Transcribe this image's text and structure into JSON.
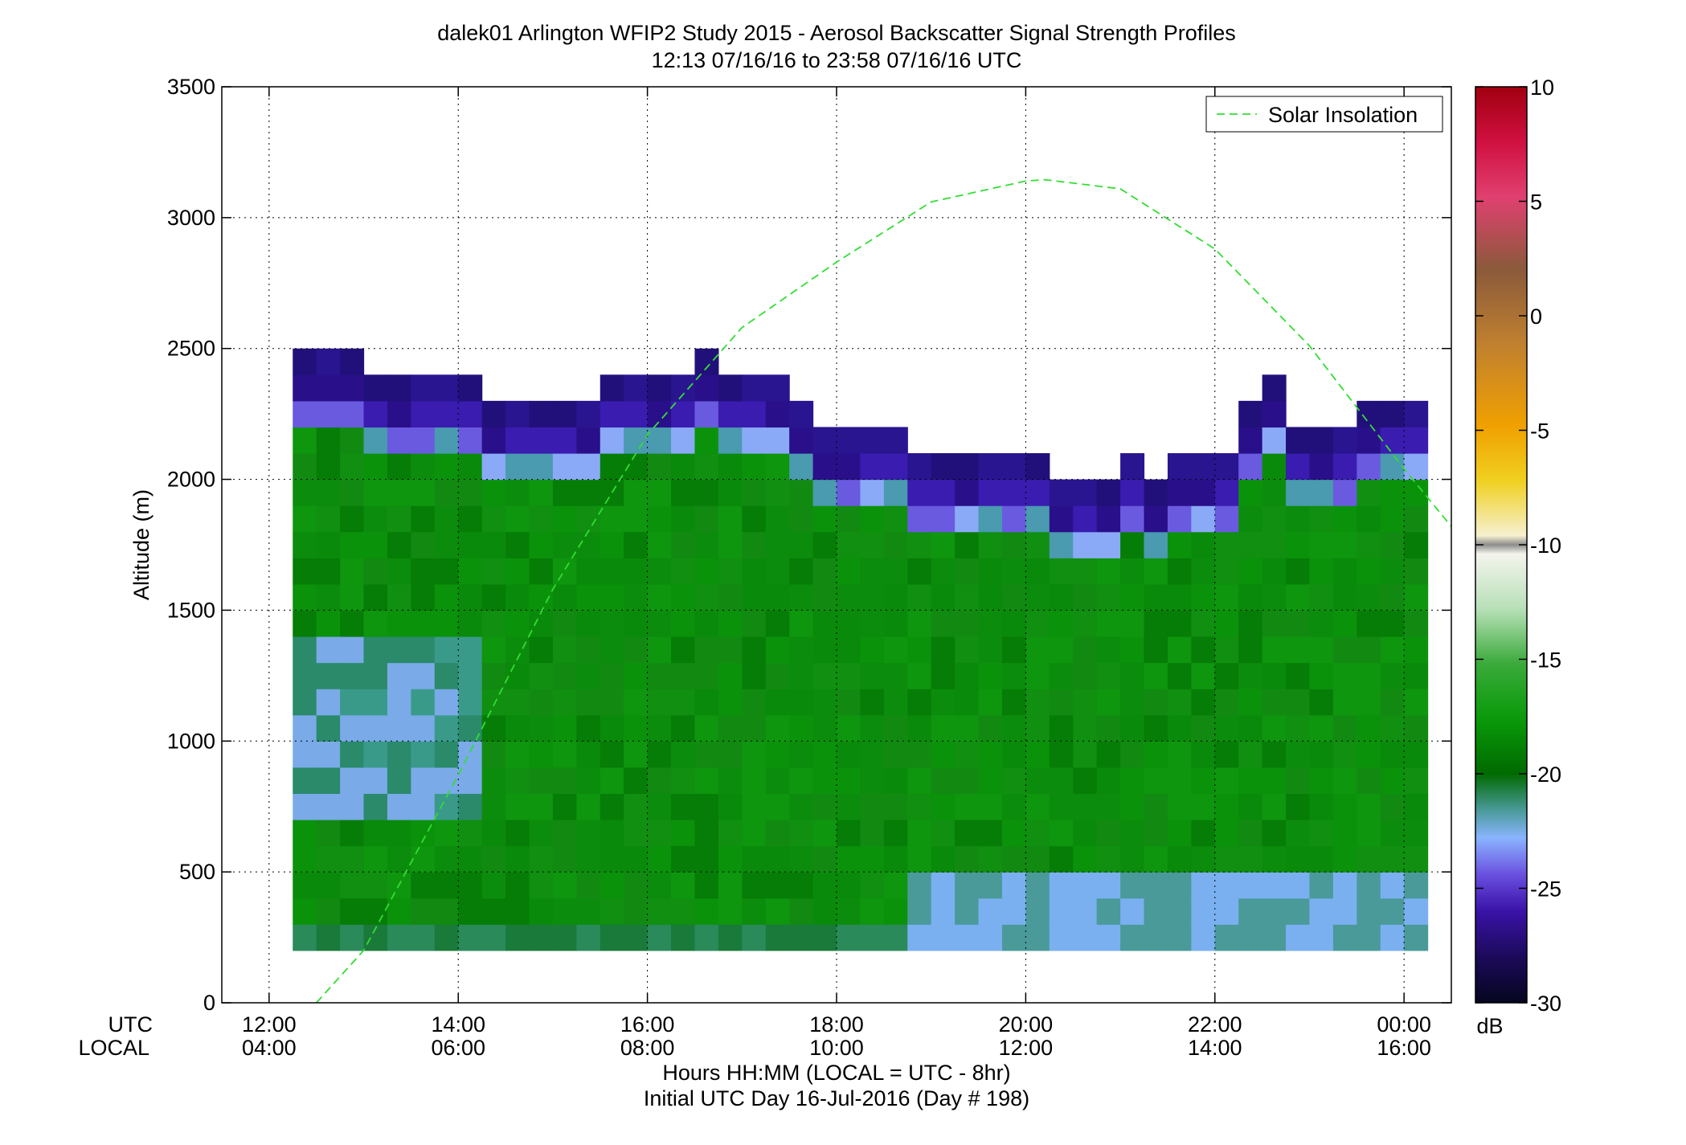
{
  "chart_data": {
    "type": "heatmap",
    "title": "dalek01 Arlington WFIP2 Study 2015 - Aerosol Backscatter Signal Strength Profiles",
    "subtitle": "12:13 07/16/16 to 23:58 07/16/16  UTC",
    "ylabel": "Altitude (m)",
    "xlabel": "Hours HH:MM  (LOCAL = UTC - 8hr)",
    "xlabel2": "Initial UTC Day 16-Jul-2016 (Day # 198)",
    "axis_row_labels": {
      "utc": "UTC",
      "local": "LOCAL"
    },
    "xlim_hours_utc": [
      11.5,
      24.5
    ],
    "ylim": [
      0,
      3500
    ],
    "grid": true,
    "x_ticks": [
      {
        "hour": 12,
        "utc": "12:00",
        "local": "04:00"
      },
      {
        "hour": 14,
        "utc": "14:00",
        "local": "06:00"
      },
      {
        "hour": 16,
        "utc": "16:00",
        "local": "08:00"
      },
      {
        "hour": 18,
        "utc": "18:00",
        "local": "10:00"
      },
      {
        "hour": 20,
        "utc": "20:00",
        "local": "12:00"
      },
      {
        "hour": 22,
        "utc": "22:00",
        "local": "14:00"
      },
      {
        "hour": 24,
        "utc": "00:00",
        "local": "16:00"
      }
    ],
    "y_ticks": [
      0,
      500,
      1000,
      1500,
      2000,
      2500,
      3000,
      3500
    ],
    "colorbar": {
      "range": [
        -30,
        10
      ],
      "ticks": [
        10,
        5,
        0,
        -5,
        -10,
        -15,
        -20,
        -25,
        -30
      ],
      "unit": "dB"
    },
    "legend": {
      "label": "Solar Insolation",
      "placement": "top-right",
      "color": "#33dd33",
      "style": "dashed"
    },
    "solar_insolation": {
      "x_hours": [
        12.5,
        13.0,
        14.0,
        15.0,
        16.0,
        17.0,
        18.0,
        19.0,
        20.0,
        20.2,
        21.0,
        22.0,
        23.0,
        24.0,
        24.5
      ],
      "y_alt": [
        0,
        200,
        870,
        1580,
        2170,
        2580,
        2830,
        3060,
        3140,
        3145,
        3110,
        2880,
        2510,
        2040,
        1820
      ]
    },
    "grid_cells": {
      "time_bin_start_hour": 12.25,
      "time_bin_hours": 0.25,
      "alt_bin_start_m": 200,
      "alt_bin_m": 100,
      "bin_count_time": 48,
      "profile_top_alt_m": [
        2500,
        2500,
        2500,
        2400,
        2400,
        2400,
        2400,
        2400,
        2300,
        2300,
        2300,
        2300,
        2300,
        2400,
        2400,
        2400,
        2400,
        2500,
        2400,
        2400,
        2400,
        2300,
        2200,
        2200,
        2200,
        2200,
        2100,
        2100,
        2100,
        2100,
        2100,
        2100,
        2000,
        2000,
        2000,
        2100,
        2000,
        2100,
        2100,
        2100,
        2300,
        2400,
        2200,
        2200,
        2200,
        2300,
        2300,
        2300
      ]
    }
  }
}
